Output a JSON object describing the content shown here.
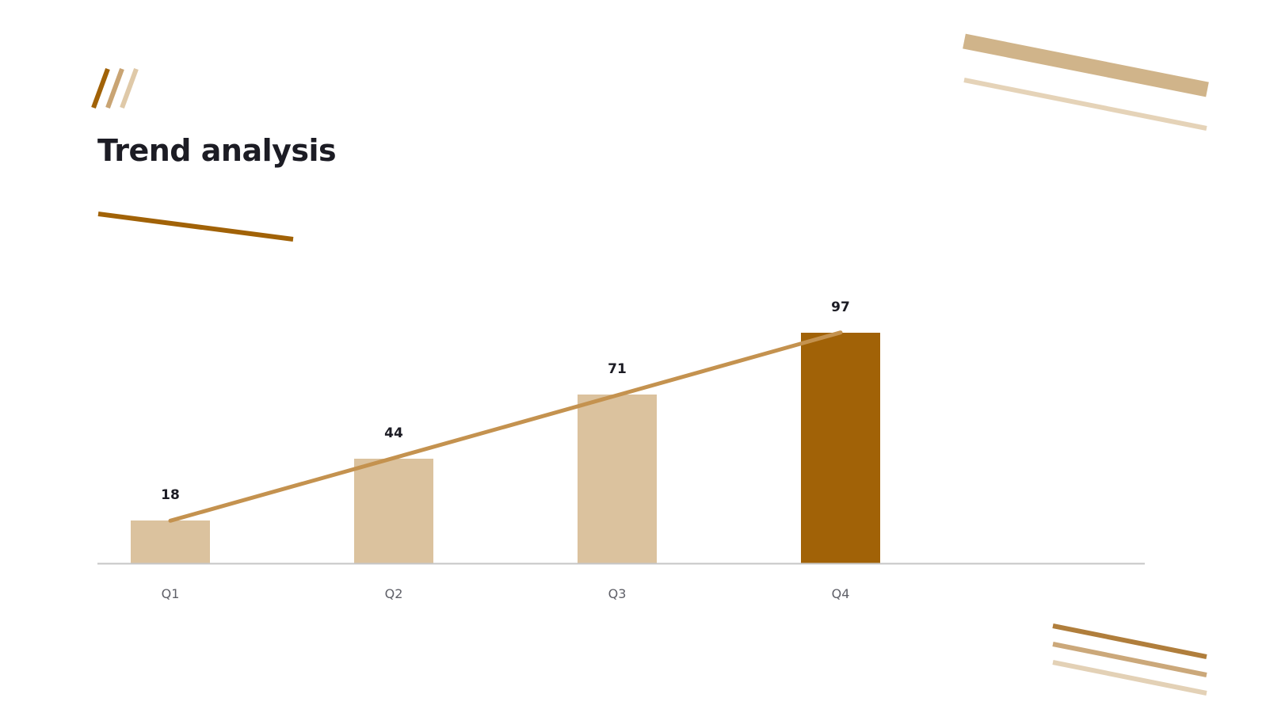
{
  "slide": {
    "title": "Trend analysis"
  },
  "colors": {
    "accent_dark": "#a16207",
    "accent_mid": "#c4924f",
    "accent_light": "#dbc29e",
    "title_text": "#1c1c24",
    "axis": "#c6c6c6"
  },
  "chart_data": {
    "type": "bar",
    "categories": [
      "Q1",
      "Q2",
      "Q3",
      "Q4"
    ],
    "values": [
      18,
      44,
      71,
      97
    ],
    "highlight_index": 3,
    "trend_line": true,
    "ylim": [
      0,
      100
    ],
    "grid": false,
    "legend": "none",
    "title": "",
    "xlabel": "",
    "ylabel": ""
  }
}
